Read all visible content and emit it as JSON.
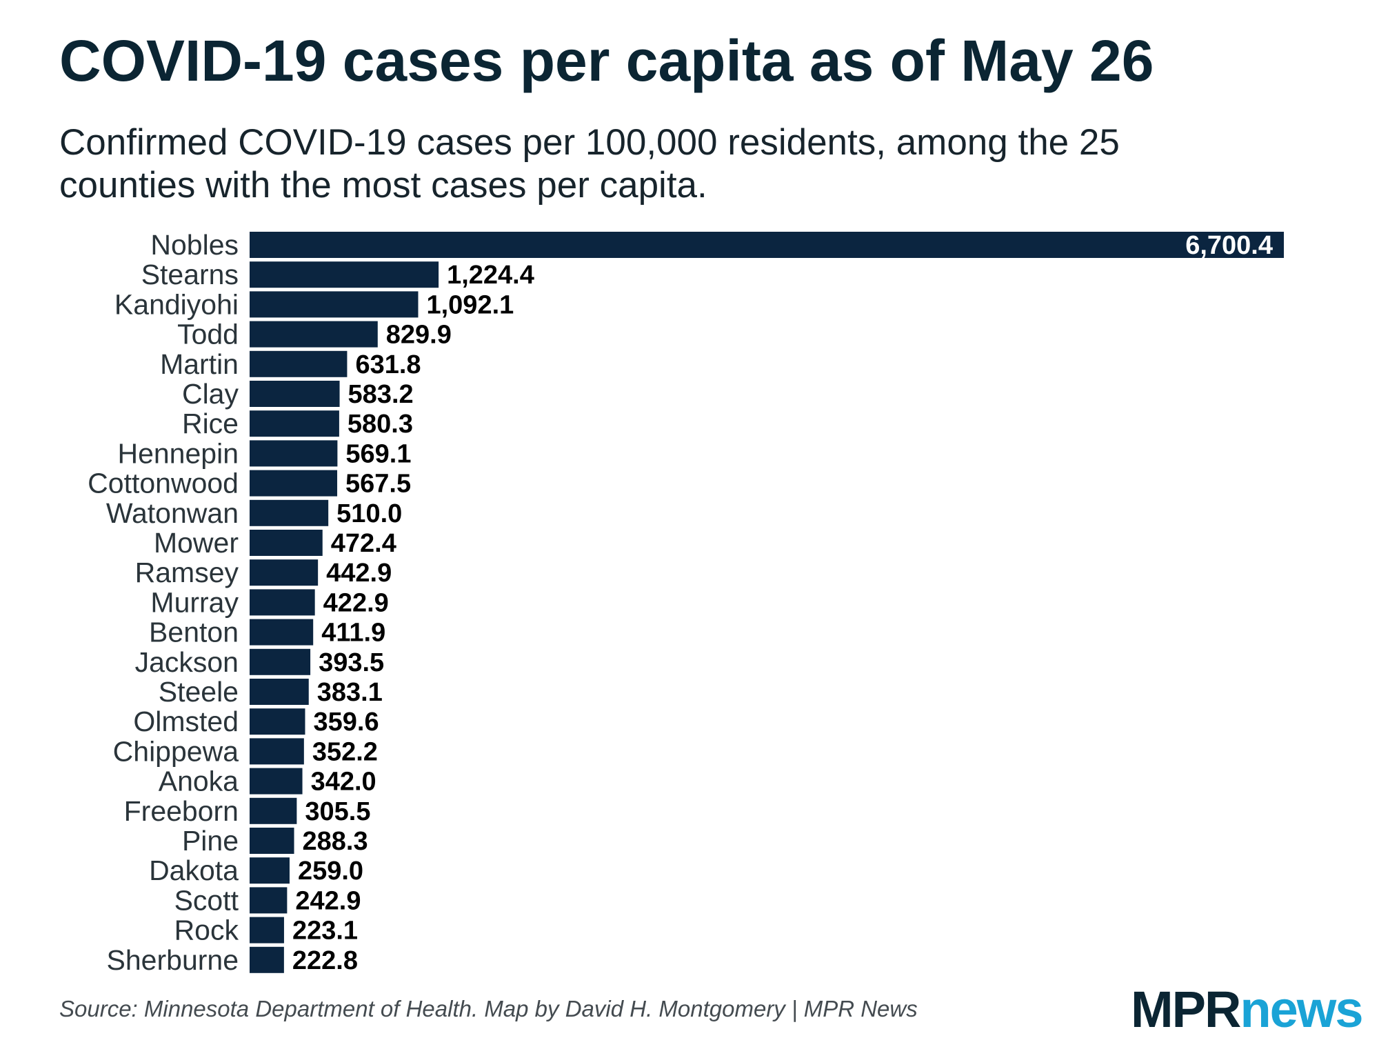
{
  "chart_data": {
    "type": "bar",
    "orientation": "horizontal",
    "title": "COVID-19 cases per capita as of May 26",
    "subtitle": "Confirmed COVID-19 cases per 100,000 residents, among the 25 counties with the most cases per capita.",
    "categories": [
      "Nobles",
      "Stearns",
      "Kandiyohi",
      "Todd",
      "Martin",
      "Clay",
      "Rice",
      "Hennepin",
      "Cottonwood",
      "Watonwan",
      "Mower",
      "Ramsey",
      "Murray",
      "Benton",
      "Jackson",
      "Steele",
      "Olmsted",
      "Chippewa",
      "Anoka",
      "Freeborn",
      "Pine",
      "Dakota",
      "Scott",
      "Rock",
      "Sherburne"
    ],
    "values": [
      6700.4,
      1224.4,
      1092.1,
      829.9,
      631.8,
      583.2,
      580.3,
      569.1,
      567.5,
      510.0,
      472.4,
      442.9,
      422.9,
      411.9,
      393.5,
      383.1,
      359.6,
      352.2,
      342.0,
      305.5,
      288.3,
      259.0,
      242.9,
      223.1,
      222.8
    ],
    "value_labels": [
      "6,700.4",
      "1,224.4",
      "1,092.1",
      "829.9",
      "631.8",
      "583.2",
      "580.3",
      "569.1",
      "567.5",
      "510.0",
      "472.4",
      "442.9",
      "422.9",
      "411.9",
      "393.5",
      "383.1",
      "359.6",
      "352.2",
      "342.0",
      "305.5",
      "288.3",
      "259.0",
      "242.9",
      "223.1",
      "222.8"
    ],
    "xlim": [
      0,
      6700.4
    ],
    "xlabel": "",
    "ylabel": "",
    "grid": false,
    "bar_color": "#0b2540"
  },
  "source": "Source: Minnesota Department of Health. Map by David H. Montgomery | MPR News",
  "logo": {
    "mpr": "MPR",
    "news": "news"
  }
}
